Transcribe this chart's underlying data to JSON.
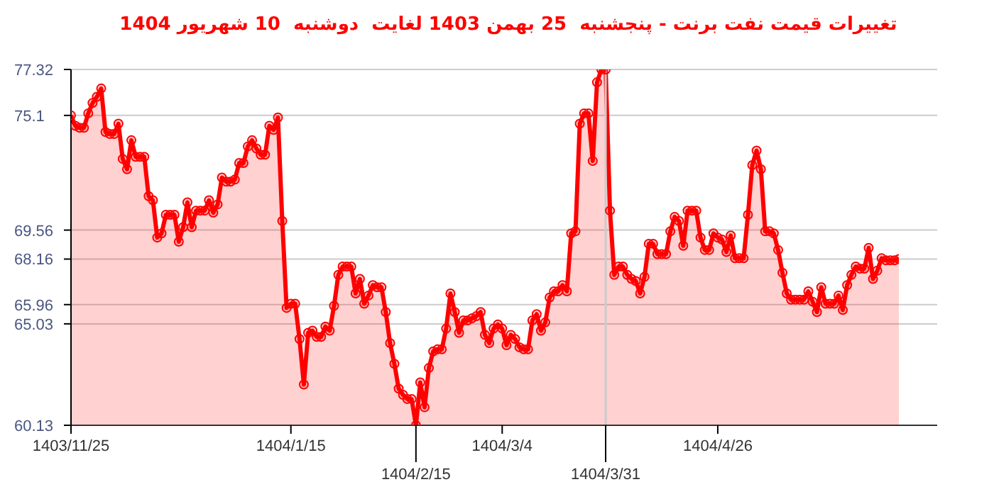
{
  "chart_data": {
    "type": "area",
    "title": "تغییرات قیمت نفت برنت - پنجشنبه  25 بهمن 1403 لغایت  دوشنبه  10 شهریور 1404",
    "categories": [
      "1403/11/25",
      null,
      null,
      null,
      null,
      null,
      null,
      null,
      null,
      null,
      null,
      null,
      null,
      null,
      null,
      null,
      null,
      null,
      null,
      null,
      null,
      null,
      null,
      null,
      null,
      null,
      null,
      null,
      null,
      null,
      null,
      null,
      null,
      null,
      null,
      null,
      null,
      null,
      null,
      null,
      null,
      null,
      null,
      null,
      null,
      null,
      null,
      null,
      null,
      null,
      null,
      "1404/1/15",
      null,
      null,
      null,
      null,
      null,
      null,
      null,
      null,
      null,
      null,
      null,
      null,
      null,
      null,
      null,
      null,
      null,
      null,
      null,
      null,
      null,
      null,
      null,
      null,
      null,
      null,
      null,
      null,
      "1404/2/15",
      null,
      null,
      null,
      null,
      null,
      null,
      null,
      null,
      null,
      null,
      null,
      null,
      null,
      null,
      null,
      null,
      null,
      null,
      null,
      "1404/3/4",
      null,
      null,
      null,
      null,
      null,
      null,
      null,
      null,
      null,
      null,
      null,
      null,
      null,
      null,
      null,
      null,
      null,
      null,
      null,
      null,
      null,
      null,
      null,
      "1404/3/31",
      null,
      null,
      null,
      null,
      null,
      null,
      null,
      null,
      null,
      null,
      null,
      null,
      null,
      null,
      null,
      null,
      null,
      null,
      null,
      null,
      null,
      null,
      null,
      null,
      null,
      "1404/4/26",
      null,
      null,
      null,
      null,
      null,
      null,
      null,
      null,
      null,
      null,
      null,
      null,
      null,
      null,
      null,
      null,
      null,
      null,
      null,
      null,
      null,
      null,
      null,
      null,
      null,
      null,
      null,
      null,
      null,
      null,
      null,
      null,
      null,
      null,
      null,
      null,
      null,
      null,
      null,
      null,
      null,
      null
    ],
    "series": [
      {
        "color": "#ff0000",
        "values": [
          75.1,
          74.6,
          74.5,
          74.5,
          75.2,
          75.7,
          76.0,
          76.4,
          74.3,
          74.2,
          74.2,
          74.7,
          73.0,
          72.5,
          73.9,
          73.1,
          73.1,
          73.1,
          71.2,
          71.0,
          69.2,
          69.4,
          70.3,
          70.3,
          70.3,
          69.0,
          69.7,
          70.9,
          69.7,
          70.5,
          70.5,
          70.5,
          71.0,
          70.4,
          70.8,
          72.1,
          71.9,
          71.9,
          72.0,
          72.8,
          72.8,
          73.6,
          73.9,
          73.5,
          73.2,
          73.2,
          74.6,
          74.4,
          75.0,
          70.0,
          65.8,
          66.0,
          66.0,
          64.3,
          62.1,
          64.6,
          64.7,
          64.4,
          64.4,
          64.9,
          64.7,
          65.9,
          67.4,
          67.8,
          67.8,
          67.8,
          66.5,
          67.2,
          66.0,
          66.4,
          66.9,
          66.8,
          66.8,
          65.6,
          64.1,
          63.1,
          61.9,
          61.6,
          61.4,
          61.4,
          60.13,
          62.2,
          61.0,
          62.9,
          63.7,
          63.8,
          63.8,
          64.8,
          66.5,
          65.6,
          64.6,
          65.2,
          65.2,
          65.3,
          65.4,
          65.6,
          64.5,
          64.1,
          64.8,
          65.0,
          64.8,
          64.0,
          64.5,
          64.3,
          63.9,
          63.8,
          63.8,
          65.2,
          65.5,
          64.7,
          65.1,
          66.3,
          66.6,
          66.6,
          66.9,
          66.6,
          69.4,
          69.5,
          74.7,
          75.2,
          75.2,
          72.9,
          76.7,
          77.32,
          77.32,
          70.5,
          67.4,
          67.8,
          67.8,
          67.4,
          67.2,
          67.1,
          66.5,
          67.3,
          68.9,
          68.9,
          68.4,
          68.4,
          68.4,
          69.5,
          70.2,
          70.0,
          68.8,
          70.5,
          70.5,
          70.5,
          69.2,
          68.6,
          68.6,
          69.4,
          69.2,
          69.1,
          68.5,
          69.3,
          68.2,
          68.2,
          68.2,
          70.3,
          72.7,
          73.4,
          72.5,
          69.5,
          69.5,
          69.4,
          68.6,
          67.5,
          66.5,
          66.2,
          66.2,
          66.2,
          66.2,
          66.6,
          66.1,
          65.6,
          66.8,
          66.0,
          66.0,
          66.0,
          66.4,
          65.7,
          66.9,
          67.4,
          67.8,
          67.7,
          67.7,
          68.7,
          67.2,
          67.6,
          68.2,
          68.1,
          68.1,
          68.1,
          68.16
        ]
      }
    ],
    "ylim": [
      60.13,
      77.32
    ],
    "yticks": [
      60.13,
      65.03,
      65.96,
      68.16,
      69.56,
      75.1,
      77.32
    ],
    "grid": "y",
    "marker": "circle",
    "ref_lines": [
      {
        "axis": "x",
        "value": "1404/3/31",
        "color": "#cccccc"
      }
    ]
  }
}
